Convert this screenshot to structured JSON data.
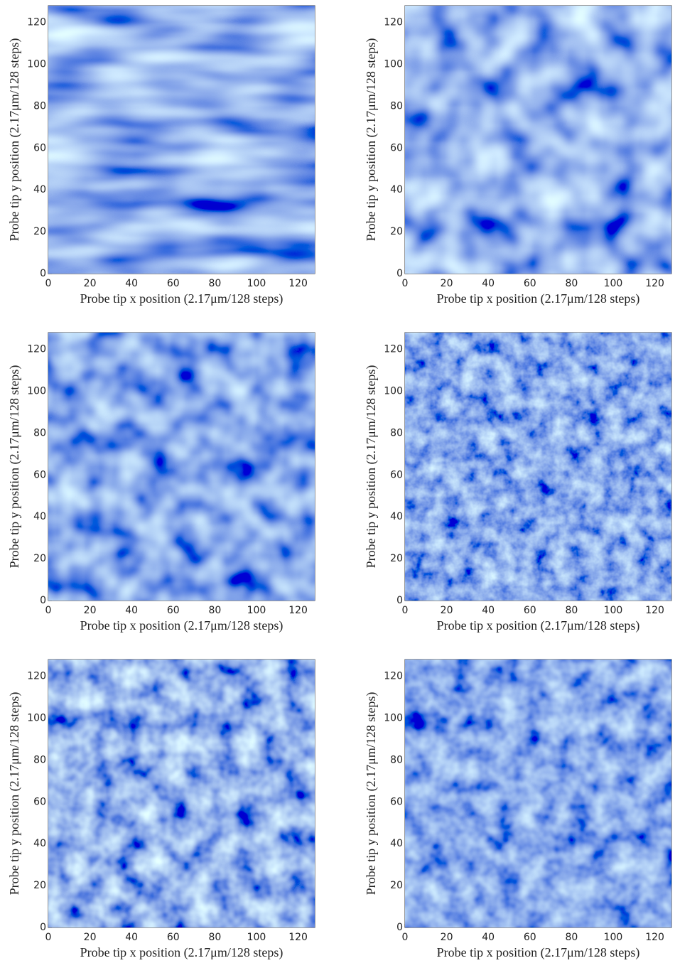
{
  "chart_data": [
    {
      "type": "image",
      "xlabel": "Probe tip x position (2.17μm/128 steps)",
      "ylabel": "Probe tip y position (2.17μm/128 steps)",
      "xlim": [
        0,
        128
      ],
      "ylim": [
        0,
        128
      ],
      "xticks": [
        0,
        20,
        40,
        60,
        80,
        100,
        120
      ],
      "yticks": [
        0,
        20,
        40,
        60,
        80,
        100,
        120
      ]
    },
    {
      "type": "image",
      "xlabel": "Probe tip x position (2.17μm/128 steps)",
      "ylabel": "Probe tip y position (2.17μm/128 steps)",
      "xlim": [
        0,
        128
      ],
      "ylim": [
        0,
        128
      ],
      "xticks": [
        0,
        20,
        40,
        60,
        80,
        100,
        120
      ],
      "yticks": [
        0,
        20,
        40,
        60,
        80,
        100,
        120
      ]
    },
    {
      "type": "image",
      "xlabel": "Probe tip x position (2.17μm/128 steps)",
      "ylabel": "Probe tip y position (2.17μm/128 steps)",
      "xlim": [
        0,
        128
      ],
      "ylim": [
        0,
        128
      ],
      "xticks": [
        0,
        20,
        40,
        60,
        80,
        100,
        120
      ],
      "yticks": [
        0,
        20,
        40,
        60,
        80,
        100,
        120
      ]
    },
    {
      "type": "image",
      "xlabel": "Probe tip x position (2.17μm/128 steps)",
      "ylabel": "Probe tip y position (2.17μm/128 steps)",
      "xlim": [
        0,
        128
      ],
      "ylim": [
        0,
        128
      ],
      "xticks": [
        0,
        20,
        40,
        60,
        80,
        100,
        120
      ],
      "yticks": [
        0,
        20,
        40,
        60,
        80,
        100,
        120
      ]
    },
    {
      "type": "image",
      "xlabel": "Probe tip x position (2.17μm/128 steps)",
      "ylabel": "Probe tip y position (2.17μm/128 steps)",
      "xlim": [
        0,
        128
      ],
      "ylim": [
        0,
        128
      ],
      "xticks": [
        0,
        20,
        40,
        60,
        80,
        100,
        120
      ],
      "yticks": [
        0,
        20,
        40,
        60,
        80,
        100,
        120
      ]
    },
    {
      "type": "image",
      "xlabel": "Probe tip x position (2.17μm/128 steps)",
      "ylabel": "Probe tip y position (2.17μm/128 steps)",
      "xlim": [
        0,
        128
      ],
      "ylim": [
        0,
        128
      ],
      "xticks": [
        0,
        20,
        40,
        60,
        80,
        100,
        120
      ],
      "yticks": [
        0,
        20,
        40,
        60,
        80,
        100,
        120
      ]
    }
  ]
}
